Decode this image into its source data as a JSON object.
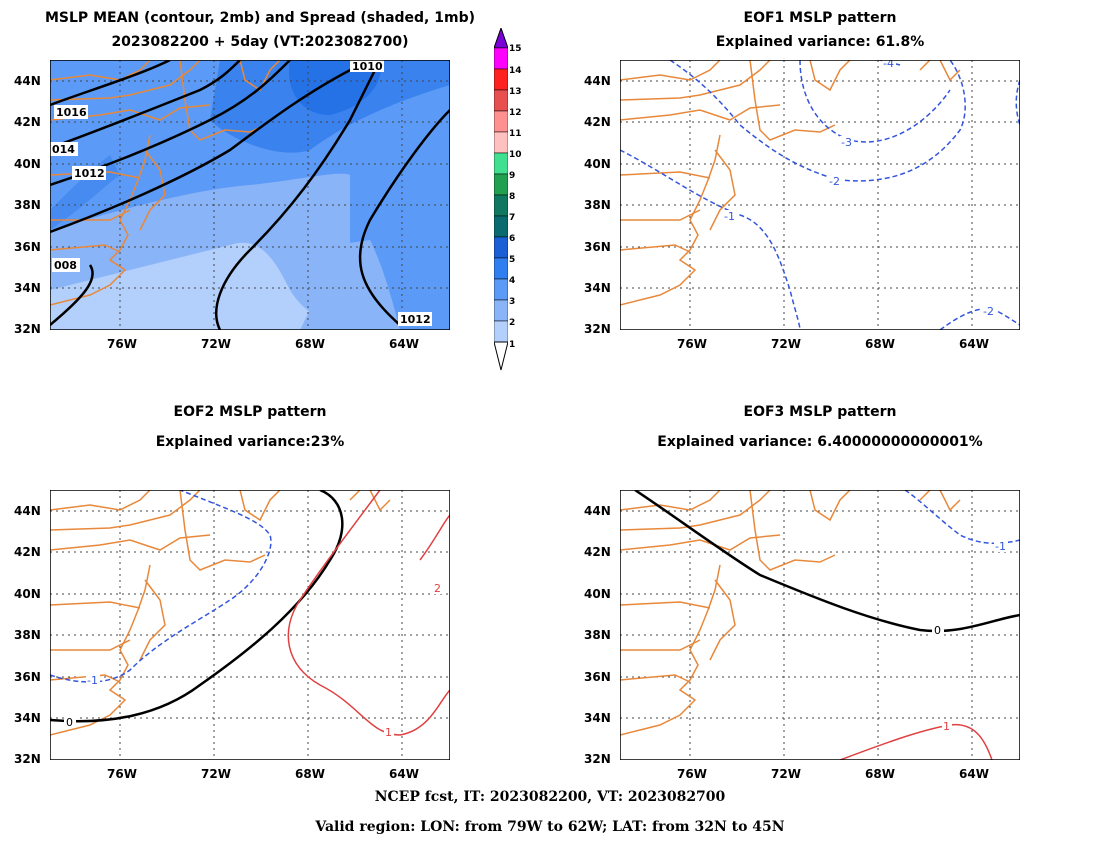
{
  "panels": [
    {
      "title_line1": "MSLP MEAN (contour, 2mb) and Spread (shaded, 1mb)",
      "title_line2": "2023082200 + 5day (VT:2023082700)"
    },
    {
      "title_line1": "EOF1 MSLP pattern",
      "title_line2": "Explained variance: 61.8%"
    },
    {
      "title_line1": "EOF2 MSLP pattern",
      "title_line2": "Explained variance:23%"
    },
    {
      "title_line1": "EOF3 MSLP pattern",
      "title_line2": "Explained variance: 6.40000000000001%"
    }
  ],
  "axes": {
    "lat_ticks": [
      "44N",
      "42N",
      "40N",
      "38N",
      "36N",
      "34N",
      "32N"
    ],
    "lon_ticks": [
      "76W",
      "72W",
      "68W",
      "64W"
    ]
  },
  "colorbar": {
    "labels": [
      "15",
      "14",
      "13",
      "12",
      "11",
      "10",
      "9",
      "8",
      "7",
      "6",
      "5",
      "4",
      "3",
      "2",
      "1"
    ],
    "colors": [
      "#7a00d8",
      "#ff00ff",
      "#ff2020",
      "#e85050",
      "#ff9090",
      "#ffc0c0",
      "#40e090",
      "#20a050",
      "#107860",
      "#1b5fd6",
      "#2f7ff0",
      "#5b9af6",
      "#8ab4f8",
      "#b2d0fb"
    ]
  },
  "contour_labels": {
    "mean": [
      "1010",
      "1016",
      "014",
      "1012",
      "008",
      "1012"
    ],
    "eof1": [
      "-4",
      "-3",
      "-2",
      "-1",
      "-2"
    ],
    "eof2": [
      "-1",
      "0",
      "2",
      "1"
    ],
    "eof3": [
      "-1",
      "0",
      "1"
    ]
  },
  "footer": {
    "line1": "NCEP fcst, IT: 2023082200, VT: 2023082700",
    "line2": "Valid region: LON: from 79W to 62W; LAT: from 32N to 45N"
  }
}
